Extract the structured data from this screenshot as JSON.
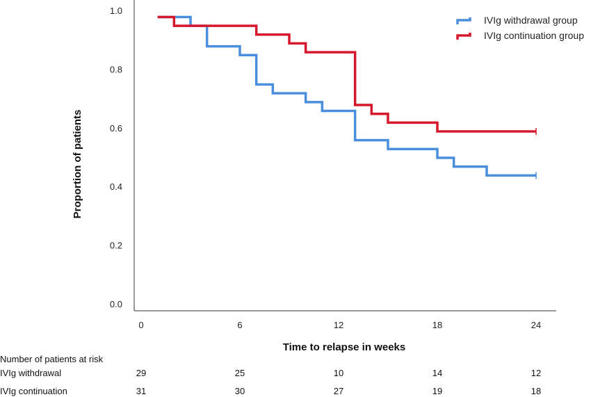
{
  "chart_data": {
    "type": "line",
    "title": "",
    "xlabel": "Time to relapse in weeks",
    "ylabel": "Proportion of patients",
    "xlim": [
      0,
      24
    ],
    "ylim": [
      0,
      1
    ],
    "x_ticks": [
      "0",
      "6",
      "12",
      "18",
      "24"
    ],
    "y_ticks": [
      "0.0",
      "0.2",
      "0.4",
      "0.6",
      "0.8",
      "1.0"
    ],
    "grid": false,
    "legend_position": "top-right",
    "series": [
      {
        "name": "IVIg withdrawal group",
        "color": "#4a8fde",
        "step_points": [
          [
            1,
            0.98
          ],
          [
            3,
            0.95
          ],
          [
            4,
            0.88
          ],
          [
            6,
            0.85
          ],
          [
            7,
            0.75
          ],
          [
            8,
            0.72
          ],
          [
            10,
            0.69
          ],
          [
            11,
            0.66
          ],
          [
            13,
            0.56
          ],
          [
            15,
            0.53
          ],
          [
            18,
            0.5
          ],
          [
            19,
            0.47
          ],
          [
            21,
            0.44
          ],
          [
            24,
            0.44
          ]
        ],
        "censor_marks": [
          24
        ]
      },
      {
        "name": "IVIg continuation group",
        "color": "#d6182c",
        "step_points": [
          [
            1,
            0.98
          ],
          [
            2,
            0.95
          ],
          [
            7,
            0.92
          ],
          [
            9,
            0.89
          ],
          [
            10,
            0.86
          ],
          [
            13,
            0.68
          ],
          [
            14,
            0.65
          ],
          [
            15,
            0.62
          ],
          [
            18,
            0.59
          ],
          [
            24,
            0.59
          ]
        ],
        "censor_marks": [
          24
        ]
      }
    ]
  },
  "risk_table": {
    "heading": "Number of patients at risk",
    "rows": [
      {
        "label": "IVIg withdrawal",
        "values": [
          "29",
          "25",
          "10",
          "14",
          "12"
        ]
      },
      {
        "label": "IVIg continuation",
        "values": [
          "31",
          "30",
          "27",
          "19",
          "18"
        ]
      }
    ]
  }
}
